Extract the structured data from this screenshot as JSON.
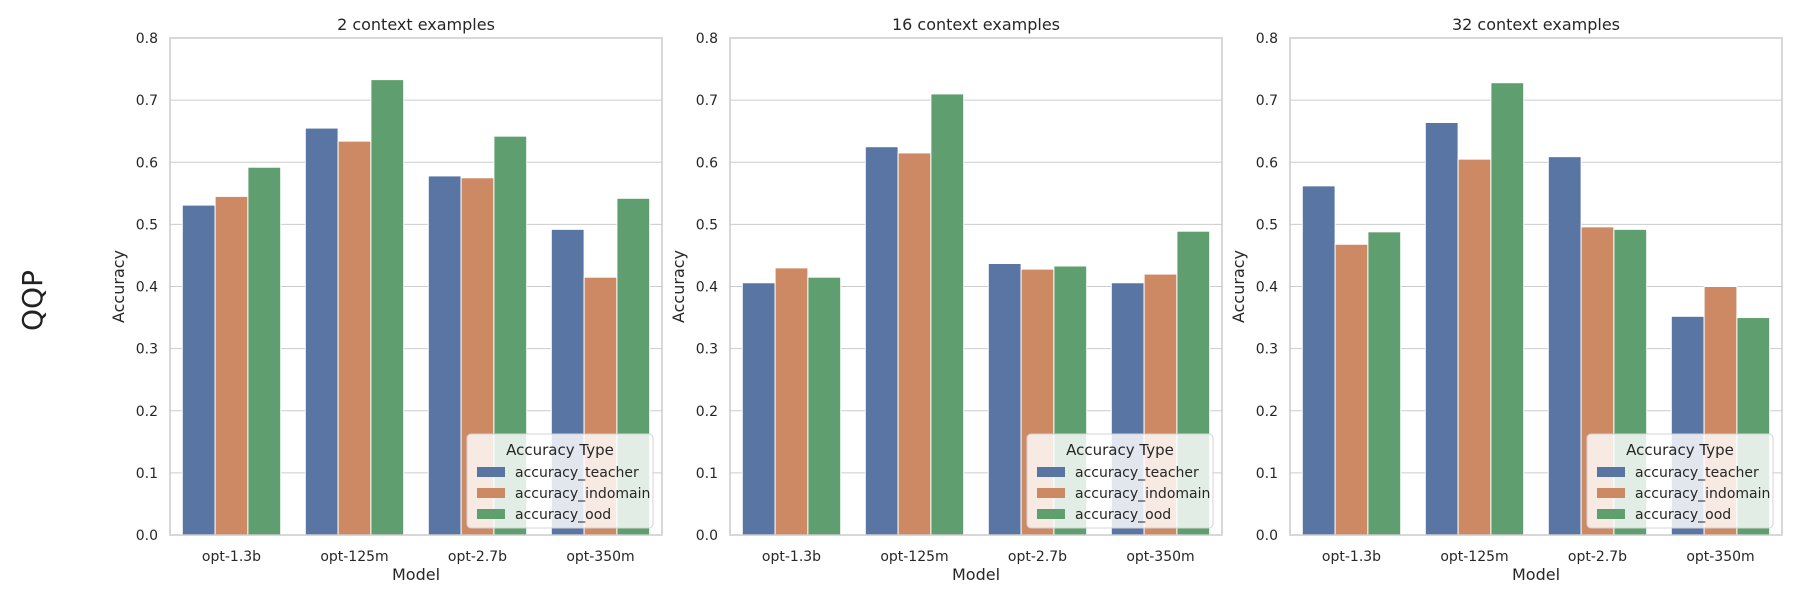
{
  "figure": {
    "row_label": "QQP"
  },
  "colors": {
    "accuracy_teacher": "#5875a4",
    "accuracy_indomain": "#cc8963",
    "accuracy_ood": "#5f9e6e"
  },
  "chart_data": [
    {
      "type": "bar",
      "title": "2 context examples",
      "xlabel": "Model",
      "ylabel": "Accuracy",
      "ylim": [
        0,
        0.8
      ],
      "yticks": [
        "0.0",
        "0.1",
        "0.2",
        "0.3",
        "0.4",
        "0.5",
        "0.6",
        "0.7",
        "0.8"
      ],
      "categories": [
        "opt-1.3b",
        "opt-125m",
        "opt-2.7b",
        "opt-350m"
      ],
      "grid": true,
      "legend": {
        "title": "Accuracy Type",
        "placement": "lower-right"
      },
      "series": [
        {
          "name": "accuracy_teacher",
          "values": [
            0.531,
            0.655,
            0.578,
            0.492
          ]
        },
        {
          "name": "accuracy_indomain",
          "values": [
            0.545,
            0.634,
            0.575,
            0.415
          ]
        },
        {
          "name": "accuracy_ood",
          "values": [
            0.592,
            0.733,
            0.642,
            0.542
          ]
        }
      ]
    },
    {
      "type": "bar",
      "title": "16 context examples",
      "xlabel": "Model",
      "ylabel": "Accuracy",
      "ylim": [
        0,
        0.8
      ],
      "yticks": [
        "0.0",
        "0.1",
        "0.2",
        "0.3",
        "0.4",
        "0.5",
        "0.6",
        "0.7",
        "0.8"
      ],
      "categories": [
        "opt-1.3b",
        "opt-125m",
        "opt-2.7b",
        "opt-350m"
      ],
      "grid": true,
      "legend": {
        "title": "Accuracy Type",
        "placement": "lower-right"
      },
      "series": [
        {
          "name": "accuracy_teacher",
          "values": [
            0.406,
            0.625,
            0.437,
            0.406
          ]
        },
        {
          "name": "accuracy_indomain",
          "values": [
            0.43,
            0.615,
            0.428,
            0.42
          ]
        },
        {
          "name": "accuracy_ood",
          "values": [
            0.415,
            0.71,
            0.433,
            0.489
          ]
        }
      ]
    },
    {
      "type": "bar",
      "title": "32 context examples",
      "xlabel": "Model",
      "ylabel": "Accuracy",
      "ylim": [
        0,
        0.8
      ],
      "yticks": [
        "0.0",
        "0.1",
        "0.2",
        "0.3",
        "0.4",
        "0.5",
        "0.6",
        "0.7",
        "0.8"
      ],
      "categories": [
        "opt-1.3b",
        "opt-125m",
        "opt-2.7b",
        "opt-350m"
      ],
      "grid": true,
      "legend": {
        "title": "Accuracy Type",
        "placement": "lower-right"
      },
      "series": [
        {
          "name": "accuracy_teacher",
          "values": [
            0.562,
            0.664,
            0.609,
            0.352
          ]
        },
        {
          "name": "accuracy_indomain",
          "values": [
            0.468,
            0.605,
            0.496,
            0.4
          ]
        },
        {
          "name": "accuracy_ood",
          "values": [
            0.488,
            0.728,
            0.492,
            0.35
          ]
        }
      ]
    }
  ]
}
